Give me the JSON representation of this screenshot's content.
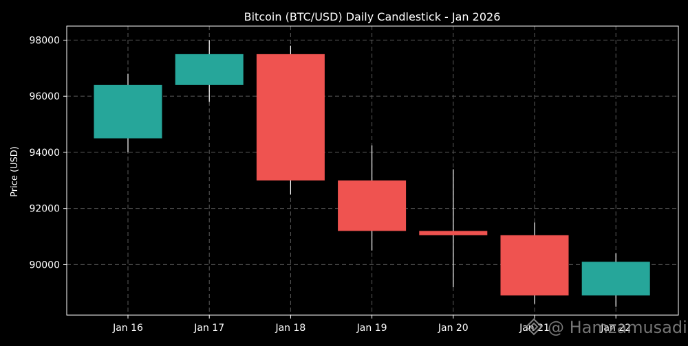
{
  "chart_data": {
    "type": "candlestick",
    "title": "Bitcoin (BTC/USD) Daily Candlestick - Jan 2026",
    "xlabel": "",
    "ylabel": "Price (USD)",
    "ylim": [
      88200,
      98500
    ],
    "yticks": [
      90000,
      92000,
      94000,
      96000,
      98000
    ],
    "grid": true,
    "colors": {
      "up": "#26a69a",
      "down": "#ef5350",
      "wick": "#ffffff",
      "background": "#000000",
      "grid": "#5a5a5a"
    },
    "categories": [
      "Jan 16",
      "Jan 17",
      "Jan 18",
      "Jan 19",
      "Jan 20",
      "Jan 21",
      "Jan 22"
    ],
    "candles": [
      {
        "date": "Jan 16",
        "open": 94500,
        "high": 96800,
        "low": 94000,
        "close": 96400
      },
      {
        "date": "Jan 17",
        "open": 96400,
        "high": 98000,
        "low": 95800,
        "close": 97500
      },
      {
        "date": "Jan 18",
        "open": 97500,
        "high": 97800,
        "low": 92500,
        "close": 93000
      },
      {
        "date": "Jan 19",
        "open": 93000,
        "high": 94250,
        "low": 90500,
        "close": 91200
      },
      {
        "date": "Jan 20",
        "open": 91200,
        "high": 93400,
        "low": 89200,
        "close": 91050
      },
      {
        "date": "Jan 21",
        "open": 91050,
        "high": 91500,
        "low": 88600,
        "close": 88900
      },
      {
        "date": "Jan 22",
        "open": 88900,
        "high": 90400,
        "low": 88500,
        "close": 90100
      }
    ]
  },
  "watermark": {
    "text": "@ Hamzamusadi",
    "icon": "binance-diamond-icon"
  }
}
